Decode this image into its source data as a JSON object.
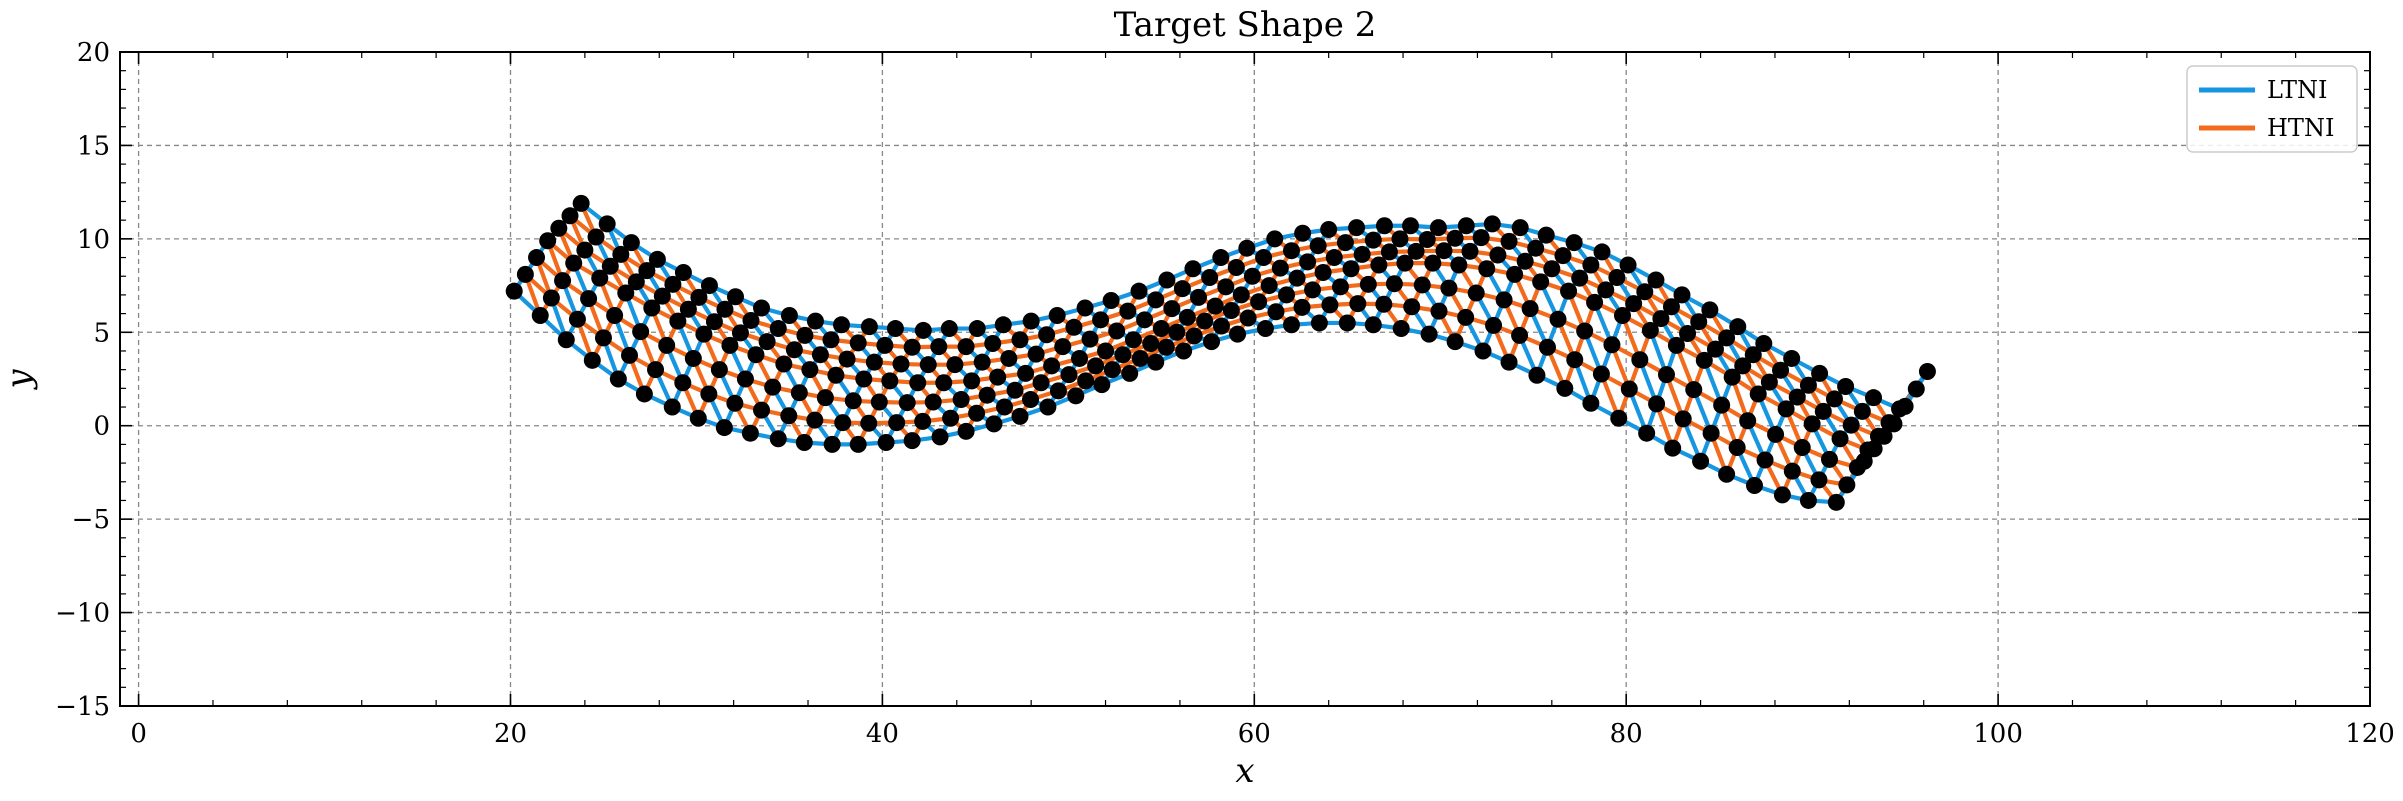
{
  "chart_data": {
    "type": "line",
    "title": "Target Shape 2",
    "xlabel": "x",
    "ylabel": "y",
    "xlim": [
      -1,
      120
    ],
    "ylim": [
      -15,
      20
    ],
    "xticks": [
      0,
      20,
      40,
      60,
      80,
      100,
      120
    ],
    "yticks": [
      -15,
      -10,
      -5,
      0,
      5,
      10,
      15,
      20
    ],
    "xtick_labels": [
      "0",
      "20",
      "40",
      "60",
      "80",
      "100",
      "120"
    ],
    "ytick_labels": [
      "−15",
      "−10",
      "−5",
      "0",
      "5",
      "10",
      "15",
      "20"
    ],
    "grid": true,
    "legend_position": "top-right",
    "series": [
      {
        "name": "LTNI",
        "color": "#1696e0"
      },
      {
        "name": "HTNI",
        "color": "#f26b1d"
      }
    ],
    "node_color": "#000000",
    "lattice": {
      "description": "triangular lattice of nodes following a sinusoidal band",
      "rows": [
        [
          [
            23.8,
            11.9
          ],
          [
            25.2,
            10.8
          ],
          [
            26.5,
            9.8
          ],
          [
            27.9,
            8.9
          ],
          [
            29.3,
            8.2
          ],
          [
            30.7,
            7.5
          ],
          [
            32.1,
            6.9
          ],
          [
            33.5,
            6.3
          ],
          [
            35.0,
            5.9
          ],
          [
            36.4,
            5.6
          ],
          [
            37.8,
            5.4
          ],
          [
            39.3,
            5.3
          ],
          [
            40.7,
            5.2
          ],
          [
            42.2,
            5.1
          ],
          [
            43.6,
            5.2
          ],
          [
            45.1,
            5.2
          ],
          [
            46.5,
            5.4
          ],
          [
            48.0,
            5.6
          ],
          [
            49.4,
            5.9
          ],
          [
            50.9,
            6.3
          ],
          [
            52.3,
            6.7
          ],
          [
            53.8,
            7.2
          ],
          [
            55.3,
            7.8
          ],
          [
            56.7,
            8.4
          ],
          [
            58.2,
            9.0
          ],
          [
            59.6,
            9.5
          ],
          [
            61.1,
            10.0
          ],
          [
            62.6,
            10.3
          ],
          [
            64.0,
            10.5
          ],
          [
            65.5,
            10.6
          ],
          [
            67.0,
            10.7
          ],
          [
            68.4,
            10.7
          ],
          [
            69.9,
            10.6
          ],
          [
            71.4,
            10.7
          ],
          [
            72.8,
            10.8
          ],
          [
            74.3,
            10.6
          ],
          [
            75.7,
            10.2
          ],
          [
            77.2,
            9.8
          ],
          [
            78.7,
            9.3
          ],
          [
            80.1,
            8.6
          ],
          [
            81.6,
            7.8
          ],
          [
            83.0,
            7.0
          ],
          [
            84.5,
            6.2
          ],
          [
            86.0,
            5.3
          ],
          [
            87.4,
            4.4
          ],
          [
            88.9,
            3.6
          ],
          [
            90.4,
            2.8
          ],
          [
            91.8,
            2.1
          ],
          [
            93.3,
            1.5
          ],
          [
            94.7,
            0.9
          ],
          [
            96.2,
            2.9
          ]
        ],
        [
          [
            22.0,
            9.9
          ],
          [
            23.4,
            8.7
          ],
          [
            24.8,
            7.9
          ],
          [
            26.2,
            7.1
          ],
          [
            27.6,
            6.3
          ],
          [
            29.0,
            5.6
          ],
          [
            30.4,
            4.9
          ],
          [
            31.8,
            4.3
          ],
          [
            33.2,
            3.8
          ],
          [
            34.7,
            3.3
          ],
          [
            36.1,
            3.0
          ],
          [
            37.5,
            2.7
          ],
          [
            39.0,
            2.5
          ],
          [
            40.4,
            2.4
          ],
          [
            41.9,
            2.3
          ],
          [
            43.3,
            2.3
          ],
          [
            44.8,
            2.4
          ],
          [
            46.2,
            2.6
          ],
          [
            47.7,
            2.8
          ],
          [
            49.1,
            3.2
          ],
          [
            50.6,
            3.6
          ],
          [
            52.0,
            4.0
          ],
          [
            53.5,
            4.6
          ],
          [
            55.0,
            5.2
          ],
          [
            56.4,
            5.8
          ],
          [
            57.9,
            6.4
          ],
          [
            59.3,
            7.0
          ],
          [
            60.8,
            7.5
          ],
          [
            62.3,
            7.9
          ],
          [
            63.7,
            8.2
          ],
          [
            65.2,
            8.4
          ],
          [
            66.7,
            8.6
          ],
          [
            68.1,
            8.7
          ],
          [
            69.6,
            8.7
          ],
          [
            71.0,
            8.6
          ],
          [
            72.5,
            8.4
          ],
          [
            74.0,
            8.1
          ],
          [
            75.4,
            7.7
          ],
          [
            76.9,
            7.2
          ],
          [
            78.3,
            6.6
          ],
          [
            79.8,
            5.9
          ],
          [
            81.3,
            5.1
          ],
          [
            82.7,
            4.3
          ],
          [
            84.2,
            3.5
          ],
          [
            85.7,
            2.6
          ],
          [
            87.1,
            1.7
          ],
          [
            88.6,
            0.9
          ],
          [
            90.0,
            0.1
          ],
          [
            91.5,
            -0.7
          ],
          [
            93.0,
            -1.3
          ],
          [
            94.4,
            0.1
          ]
        ],
        [
          [
            20.2,
            7.2
          ],
          [
            21.6,
            5.9
          ],
          [
            23.0,
            4.6
          ],
          [
            24.4,
            3.5
          ],
          [
            25.8,
            2.5
          ],
          [
            27.2,
            1.7
          ],
          [
            28.7,
            1.0
          ],
          [
            30.1,
            0.4
          ],
          [
            31.5,
            -0.1
          ],
          [
            32.9,
            -0.4
          ],
          [
            34.4,
            -0.7
          ],
          [
            35.8,
            -0.9
          ],
          [
            37.3,
            -1.0
          ],
          [
            38.7,
            -1.0
          ],
          [
            40.2,
            -0.9
          ],
          [
            41.6,
            -0.8
          ],
          [
            43.1,
            -0.6
          ],
          [
            44.5,
            -0.3
          ],
          [
            46.0,
            0.1
          ],
          [
            47.4,
            0.5
          ],
          [
            48.9,
            1.0
          ],
          [
            50.4,
            1.6
          ],
          [
            51.8,
            2.2
          ],
          [
            53.3,
            2.8
          ],
          [
            54.7,
            3.4
          ],
          [
            56.2,
            4.0
          ],
          [
            57.7,
            4.5
          ],
          [
            59.1,
            4.9
          ],
          [
            60.6,
            5.2
          ],
          [
            62.0,
            5.4
          ],
          [
            63.5,
            5.5
          ],
          [
            65.0,
            5.5
          ],
          [
            66.4,
            5.4
          ],
          [
            67.9,
            5.2
          ],
          [
            69.4,
            4.9
          ],
          [
            70.8,
            4.5
          ],
          [
            72.3,
            4.0
          ],
          [
            73.7,
            3.4
          ],
          [
            75.2,
            2.7
          ],
          [
            76.7,
            2.0
          ],
          [
            78.1,
            1.2
          ],
          [
            79.6,
            0.4
          ],
          [
            81.1,
            -0.4
          ],
          [
            82.5,
            -1.2
          ],
          [
            84.0,
            -1.9
          ],
          [
            85.4,
            -2.6
          ],
          [
            86.9,
            -3.2
          ],
          [
            88.4,
            -3.7
          ],
          [
            89.8,
            -4.0
          ],
          [
            91.3,
            -4.1
          ],
          [
            92.8,
            -1.9
          ]
        ]
      ]
    }
  }
}
